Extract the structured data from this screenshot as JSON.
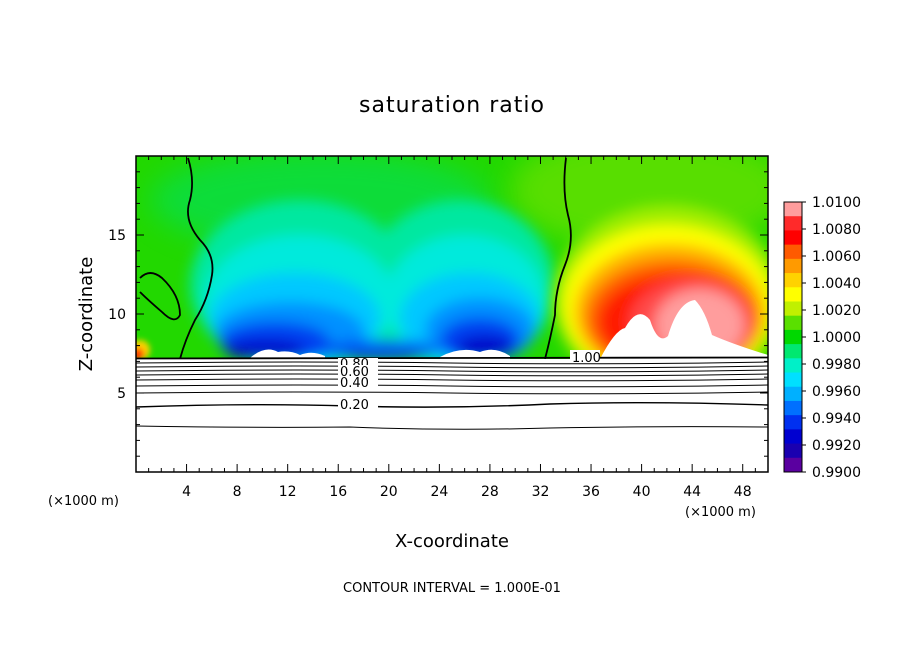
{
  "chart_data": {
    "type": "heatmap",
    "title": "saturation ratio",
    "xlabel": "X-coordinate",
    "ylabel": "Z-coordinate",
    "x_unit": "(×1000 m)",
    "z_unit": "(×1000 m)",
    "xlim": [
      0,
      50
    ],
    "ylim": [
      0,
      20
    ],
    "x_ticks": [
      4,
      8,
      12,
      16,
      20,
      24,
      28,
      32,
      36,
      40,
      44,
      48
    ],
    "y_ticks": [
      5,
      10,
      15
    ],
    "colorbar": {
      "min": 0.99,
      "max": 1.01,
      "labels": [
        "1.0100",
        "1.0080",
        "1.0060",
        "1.0040",
        "1.0020",
        "1.0000",
        "0.9980",
        "0.9960",
        "0.9940",
        "0.9920",
        "0.9900"
      ],
      "colors": [
        "#ff9d9d",
        "#ff2a2a",
        "#ff0000",
        "#ff5a00",
        "#ff9a00",
        "#ffd200",
        "#ffff00",
        "#c0f000",
        "#5ae000",
        "#00d800",
        "#00e870",
        "#00f0c8",
        "#00e0ff",
        "#00b0ff",
        "#0070ff",
        "#0030f0",
        "#0000d0",
        "#1a00b0",
        "#5a00a0"
      ]
    },
    "contour_labels": [
      "1.00",
      "0.80",
      "0.60",
      "0.40",
      "0.20"
    ],
    "contour_levels": [
      0.2,
      0.4,
      0.6,
      0.8,
      1.0
    ],
    "footer": "CONTOUR INTERVAL = 1.000E-01"
  }
}
